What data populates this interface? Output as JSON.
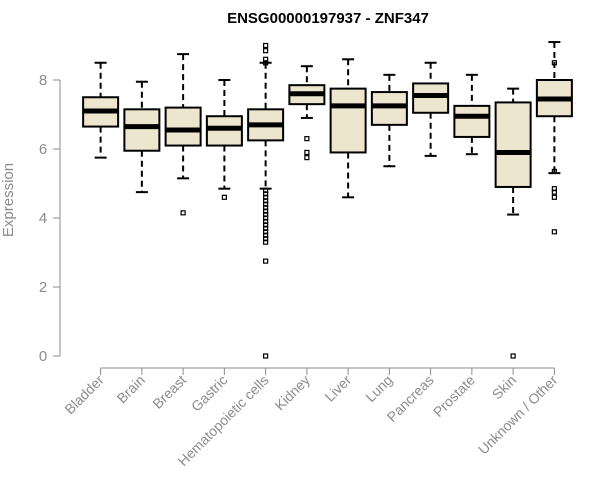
{
  "chart_data": {
    "type": "box",
    "title": "ENSG00000197937 - ZNF347",
    "xlabel": "",
    "ylabel": "Expression",
    "ylim": [
      0,
      9.3
    ],
    "yticks": [
      0,
      2,
      4,
      6,
      8
    ],
    "grid": false,
    "box_fill": "#ede6cf",
    "outlier_color": "#000000",
    "categories": [
      "Bladder",
      "Brain",
      "Breast",
      "Gastric",
      "Hematopoietic cells",
      "Kidney",
      "Liver",
      "Lung",
      "Pancreas",
      "Prostate",
      "Skin",
      "Unknown / Other"
    ],
    "boxes": [
      {
        "whisker_low": 5.75,
        "q1": 6.65,
        "median": 7.1,
        "q3": 7.5,
        "whisker_high": 8.5,
        "outliers": []
      },
      {
        "whisker_low": 4.75,
        "q1": 5.95,
        "median": 6.65,
        "q3": 7.15,
        "whisker_high": 7.95,
        "outliers": []
      },
      {
        "whisker_low": 5.15,
        "q1": 6.1,
        "median": 6.55,
        "q3": 7.2,
        "whisker_high": 8.75,
        "outliers": [
          4.15
        ]
      },
      {
        "whisker_low": 4.85,
        "q1": 6.1,
        "median": 6.6,
        "q3": 6.95,
        "whisker_high": 8.0,
        "outliers": [
          4.6
        ]
      },
      {
        "whisker_low": 4.85,
        "q1": 6.25,
        "median": 6.7,
        "q3": 7.15,
        "whisker_high": 8.5,
        "outliers": [
          9.0,
          8.85,
          8.6,
          8.5,
          4.8,
          4.7,
          4.6,
          4.5,
          4.4,
          4.3,
          4.2,
          4.1,
          4.0,
          3.9,
          3.8,
          3.7,
          3.6,
          3.5,
          3.4,
          3.3,
          2.75,
          0.0
        ]
      },
      {
        "whisker_low": 6.9,
        "q1": 7.3,
        "median": 7.6,
        "q3": 7.85,
        "whisker_high": 8.4,
        "outliers": [
          6.3,
          5.9,
          5.75
        ]
      },
      {
        "whisker_low": 4.6,
        "q1": 5.9,
        "median": 7.25,
        "q3": 7.75,
        "whisker_high": 8.6,
        "outliers": []
      },
      {
        "whisker_low": 5.5,
        "q1": 6.7,
        "median": 7.25,
        "q3": 7.65,
        "whisker_high": 8.15,
        "outliers": []
      },
      {
        "whisker_low": 5.8,
        "q1": 7.05,
        "median": 7.55,
        "q3": 7.9,
        "whisker_high": 8.5,
        "outliers": []
      },
      {
        "whisker_low": 5.85,
        "q1": 6.35,
        "median": 6.95,
        "q3": 7.25,
        "whisker_high": 8.15,
        "outliers": []
      },
      {
        "whisker_low": 4.1,
        "q1": 4.9,
        "median": 5.9,
        "q3": 7.35,
        "whisker_high": 7.75,
        "outliers": [
          0.0
        ]
      },
      {
        "whisker_low": 5.3,
        "q1": 6.95,
        "median": 7.45,
        "q3": 8.0,
        "whisker_high": 9.1,
        "outliers": [
          8.5,
          5.35,
          4.85,
          4.75,
          4.6,
          3.6
        ]
      }
    ]
  }
}
